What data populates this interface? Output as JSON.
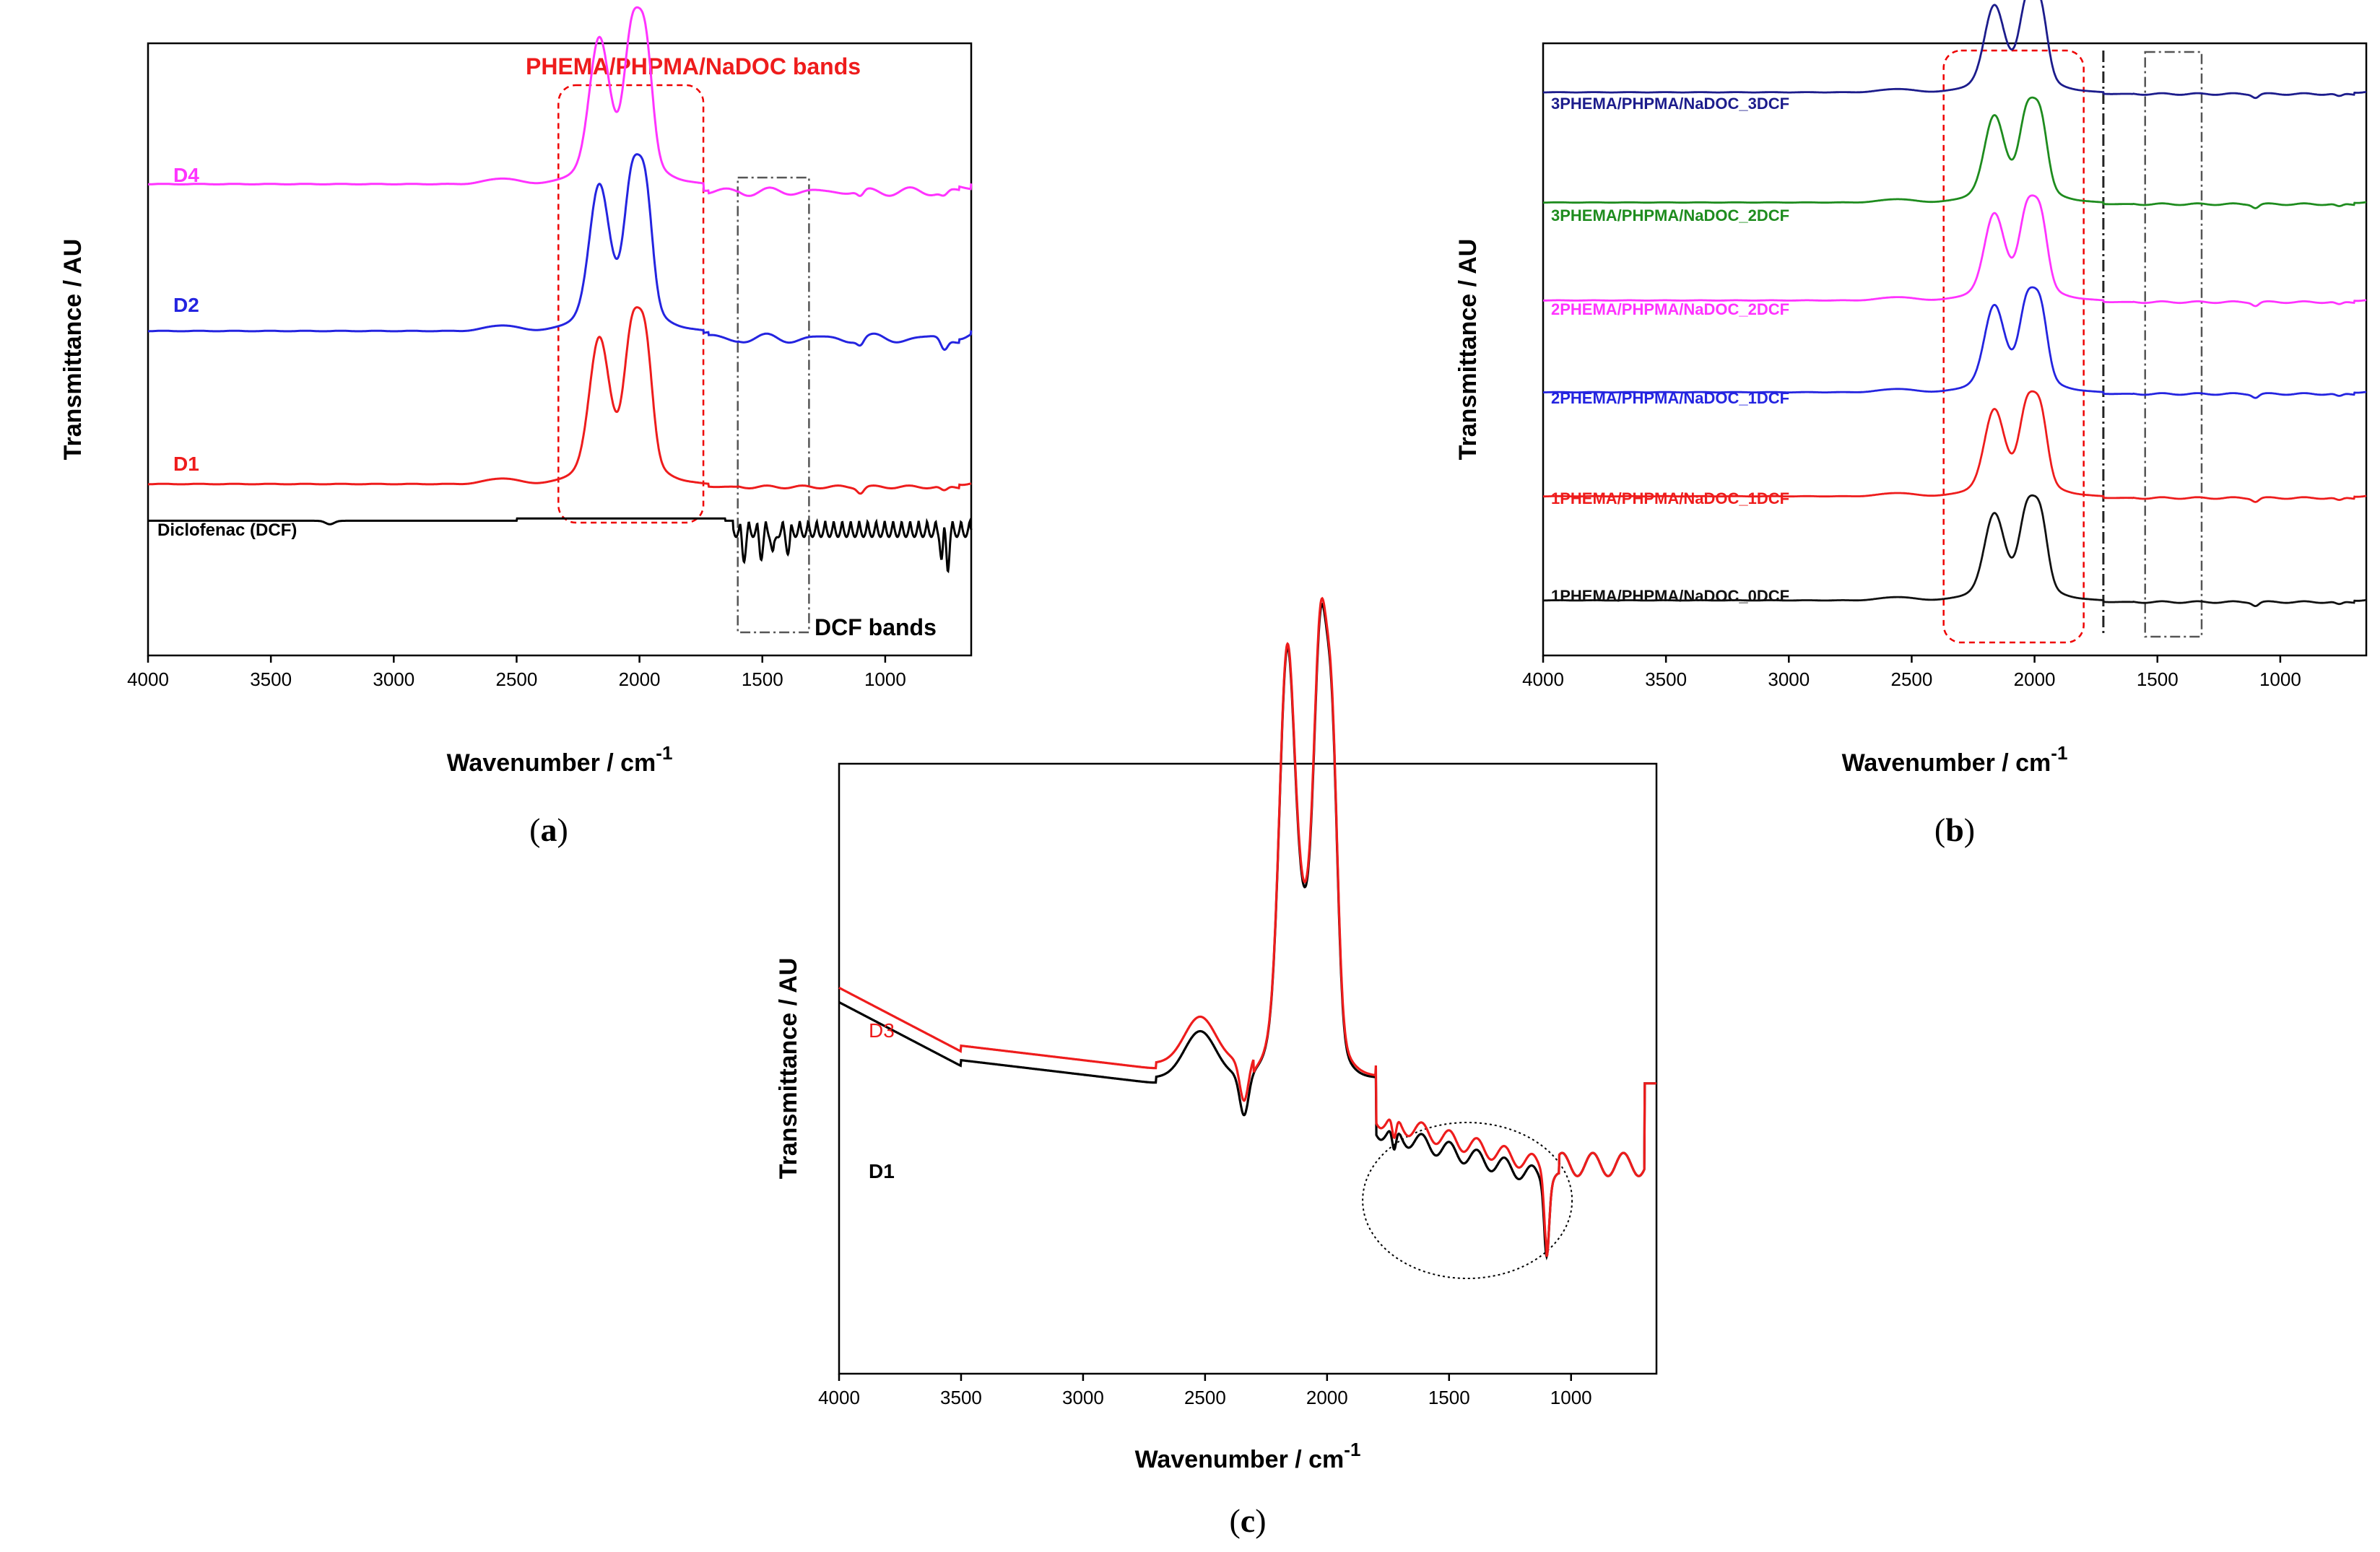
{
  "figure": {
    "panels": [
      {
        "id": "a",
        "label_open": "(",
        "label_letter": "a",
        "label_close": ")"
      },
      {
        "id": "b",
        "label_open": "(",
        "label_letter": "b",
        "label_close": ")"
      },
      {
        "id": "c",
        "label_open": "(",
        "label_letter": "c",
        "label_close": ")"
      }
    ]
  },
  "chart_data": [
    {
      "id": "a",
      "type": "line",
      "title": "",
      "xlabel": "Wavenumber / cm",
      "xlabel_sup": "-1",
      "ylabel": "Transmittance / AU",
      "xlim": [
        4000,
        650
      ],
      "xticks": [
        4000,
        3500,
        3000,
        2500,
        2000,
        1500,
        1000
      ],
      "yticks": [],
      "grid": false,
      "legend": "inline labels left of each curve",
      "series": [
        {
          "name": "Diclofenac (DCF)",
          "color": "#000000",
          "offset": 0.22,
          "profile": "dcf"
        },
        {
          "name": "D1",
          "color": "#ee1c1c",
          "offset": 0.28,
          "profile": "polymer"
        },
        {
          "name": "D2",
          "color": "#2424e0",
          "offset": 0.53,
          "profile": "polymer_d2"
        },
        {
          "name": "D4",
          "color": "#ff33ff",
          "offset": 0.77,
          "profile": "polymer_d4"
        }
      ],
      "annotations": [
        {
          "text": "PHEMA/PHPMA/NaDOC bands",
          "color": "#ee1c1c",
          "x_range": [
            2330,
            1740
          ],
          "style": "red dashed rounded box"
        },
        {
          "text": "DCF bands",
          "color": "#000000",
          "x_range": [
            1600,
            1310
          ],
          "style": "dash-dot box"
        }
      ]
    },
    {
      "id": "b",
      "type": "line",
      "title": "",
      "xlabel": "Wavenumber / cm",
      "xlabel_sup": "-1",
      "ylabel": "Transmittance / AU",
      "xlim": [
        4000,
        650
      ],
      "xticks": [
        4000,
        3500,
        3000,
        2500,
        2000,
        1500,
        1000
      ],
      "yticks": [],
      "grid": false,
      "legend": "inline labels left of each curve",
      "series": [
        {
          "name": "1PHEMA/PHPMA/NaDOC_0DCF",
          "color": "#111111",
          "offset": 0.09,
          "profile": "polymer"
        },
        {
          "name": "1PHEMA/PHPMA/NaDOC_1DCF",
          "color": "#ee1c1c",
          "offset": 0.26,
          "profile": "polymer"
        },
        {
          "name": "2PHEMA/PHPMA/NaDOC_1DCF",
          "color": "#2424e0",
          "offset": 0.43,
          "profile": "polymer"
        },
        {
          "name": "2PHEMA/PHPMA/NaDOC_2DCF",
          "color": "#ff33ff",
          "offset": 0.58,
          "profile": "polymer"
        },
        {
          "name": "3PHEMA/PHPMA/NaDOC_2DCF",
          "color": "#1e8c1e",
          "offset": 0.74,
          "profile": "polymer"
        },
        {
          "name": "3PHEMA/PHPMA/NaDOC_3DCF",
          "color": "#1c1c8c",
          "offset": 0.92,
          "profile": "polymer"
        }
      ],
      "annotations": [
        {
          "text": "",
          "style": "red dashed rounded box",
          "x_range": [
            2370,
            1800
          ]
        },
        {
          "text": "",
          "style": "vertical dash-dot line",
          "x_value": 1720
        },
        {
          "text": "",
          "style": "dash-dot box",
          "x_range": [
            1550,
            1320
          ]
        }
      ]
    },
    {
      "id": "c",
      "type": "line",
      "title": "",
      "xlabel": "Wavenumber / cm",
      "xlabel_sup": "-1",
      "ylabel": "Transmittance / AU",
      "xlim": [
        4000,
        650
      ],
      "xticks": [
        4000,
        3500,
        3000,
        2500,
        2000,
        1500,
        1000
      ],
      "yticks": [],
      "grid": false,
      "legend": "inline labels at left",
      "series": [
        {
          "name": "D1",
          "color": "#000000",
          "profile": "c_d1"
        },
        {
          "name": "D3",
          "color": "#ee1c1c",
          "profile": "c_d3"
        }
      ],
      "annotations": [
        {
          "text": "",
          "style": "dotted ellipse",
          "x_range": [
            1750,
            1100
          ]
        }
      ]
    }
  ]
}
